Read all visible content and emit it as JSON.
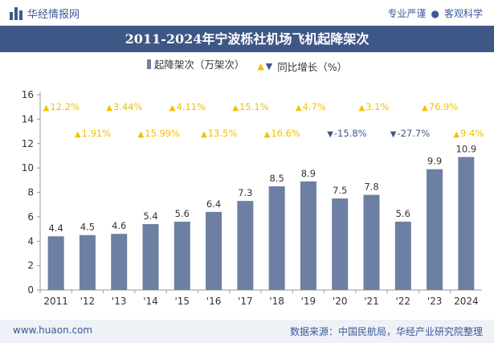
{
  "header": {
    "brand": "华经情报网",
    "tagline_left": "专业严谨",
    "tagline_sep": "●",
    "tagline_right": "客观科学"
  },
  "footer": {
    "site": "www.huaon.com",
    "source": "数据来源：中国民航局，华经产业研究院整理"
  },
  "colors": {
    "bar": "#6e7fa4",
    "title_bg": "#3f5786",
    "up": "#f2c200",
    "down": "#3f5786"
  },
  "chart_data": {
    "type": "bar",
    "title": "2011-2024年宁波栎社机场飞机起降架次",
    "categories": [
      "2011",
      "'12",
      "'13",
      "'14",
      "'15",
      "'16",
      "'17",
      "'18",
      "'19",
      "'20",
      "'21",
      "'22",
      "'23",
      "2024"
    ],
    "series": [
      {
        "name": "起降架次（万架次）",
        "values": [
          4.4,
          4.5,
          4.6,
          5.4,
          5.6,
          6.4,
          7.3,
          8.5,
          8.9,
          7.5,
          7.8,
          5.6,
          9.9,
          10.9
        ]
      }
    ],
    "growth": {
      "name": "同比增长（%）",
      "values": [
        12.2,
        1.91,
        3.44,
        15.99,
        4.11,
        13.5,
        15.1,
        16.6,
        4.7,
        -15.8,
        3.1,
        -27.7,
        76.9,
        9.4
      ],
      "labels": [
        "12.2%",
        "1.91%",
        "3.44%",
        "15.99%",
        "4.11%",
        "13.5%",
        "15.1%",
        "16.6%",
        "4.7%",
        "-15.8%",
        "3.1%",
        "-27.7%",
        "76.9%",
        "9.4%"
      ]
    },
    "value_labels": [
      "4.4",
      "4.5",
      "4.6",
      "5.4",
      "5.6",
      "6.4",
      "7.3",
      "8.5",
      "8.9",
      "7.5",
      "7.8",
      "5.6",
      "9.9",
      "10.9"
    ],
    "y_ticks": [
      "0",
      "2",
      "4",
      "6",
      "8",
      "10",
      "12",
      "14",
      "16"
    ],
    "ylim": [
      0,
      16
    ],
    "legend_position": "top-center",
    "grid": false
  }
}
